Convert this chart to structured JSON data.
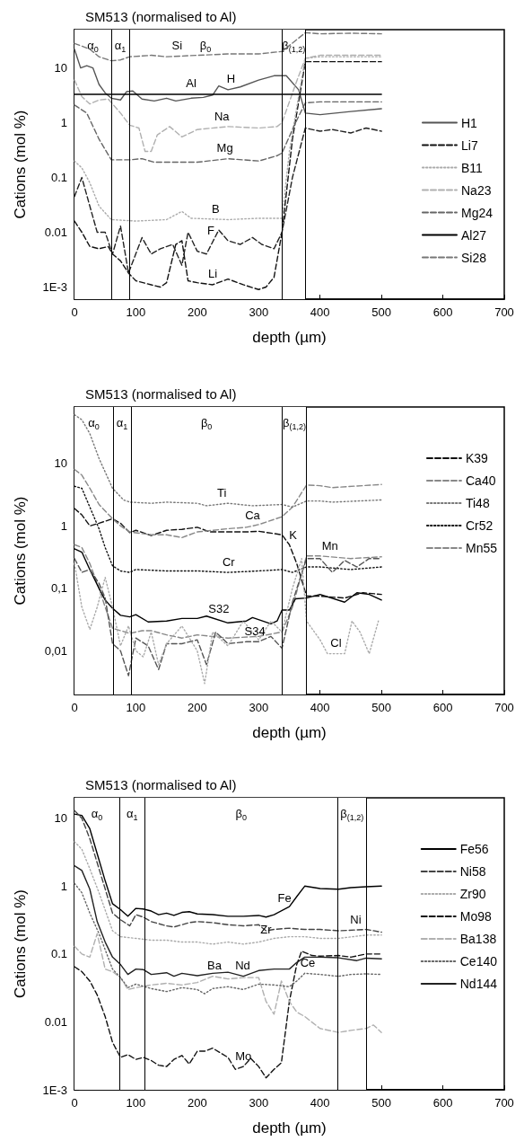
{
  "chart_data": [
    {
      "type": "line",
      "title": "SM513 (normalised to Al)",
      "xlabel": "depth (µm)",
      "ylabel": "Cations (mol %)",
      "log": "y",
      "grid": false,
      "legend": "right",
      "marker": "none",
      "xlim": [
        0,
        700
      ],
      "xticks": [
        0,
        100,
        200,
        300,
        400,
        500,
        600,
        700
      ],
      "ylim": [
        0.0006,
        50
      ],
      "yticks": [
        {
          "value": 0.001,
          "label": "1E-3"
        },
        0.01,
        0.1,
        1,
        10
      ],
      "ref_lines": [
        {
          "axis": "x",
          "value": 60
        },
        {
          "axis": "x",
          "value": 89
        },
        {
          "axis": "x",
          "value": 338
        },
        {
          "axis": "x",
          "value": 376
        }
      ],
      "bands": [
        {
          "axis": "x",
          "from": 0,
          "to": 60,
          "label": "α$_{0}$"
        },
        {
          "axis": "x",
          "from": 60,
          "to": 89,
          "label": "α$_{1}$"
        },
        {
          "axis": "x",
          "from": 89,
          "to": 338,
          "label": "β$_{0}$"
        },
        {
          "axis": "x",
          "from": 338,
          "to": 376,
          "label": "β$_{(1,2)}$"
        }
      ],
      "annotations": [
        {
          "text": "Si",
          "x": 167,
          "y": 16.3
        },
        {
          "text": "H",
          "x": 255,
          "y": 4.1
        },
        {
          "text": "Al",
          "x": 190,
          "y": 3.3
        },
        {
          "text": "Na",
          "x": 240,
          "y": 0.83
        },
        {
          "text": "Mg",
          "x": 245,
          "y": 0.22
        },
        {
          "text": "B",
          "x": 230,
          "y": 0.017
        },
        {
          "text": "F",
          "x": 222,
          "y": 0.0068
        },
        {
          "text": "Li",
          "x": 225,
          "y": 0.0011
        }
      ],
      "series": [
        {
          "name": "H1",
          "color": "#555555",
          "line_style": "solid",
          "x": [
            0,
            10,
            20,
            30,
            40,
            50,
            60,
            75,
            85,
            95,
            110,
            130,
            150,
            165,
            190,
            210,
            225,
            235,
            250,
            270,
            300,
            325,
            345,
            365,
            376,
            400,
            450,
            500
          ],
          "values": [
            22,
            10,
            11,
            10,
            5,
            3.5,
            2.8,
            2.6,
            3.7,
            3.8,
            2.7,
            2.5,
            2.8,
            2.5,
            2.8,
            2.9,
            3.2,
            4.7,
            4,
            4.5,
            6,
            7.2,
            7.2,
            4,
            1.5,
            1.4,
            1.6,
            1.8
          ]
        },
        {
          "name": "Li7",
          "color": "#111111",
          "line_style": "dashed",
          "x": [
            0,
            12,
            25,
            40,
            55,
            62,
            75,
            88,
            100,
            125,
            140,
            150,
            165,
            175,
            185,
            200,
            225,
            250,
            275,
            300,
            312,
            325,
            338,
            355,
            376,
            400,
            500
          ],
          "values": [
            0.016,
            0.01,
            0.0055,
            0.005,
            0.0055,
            0.004,
            0.003,
            0.0018,
            0.0013,
            0.0011,
            0.001,
            0.0012,
            0.006,
            0.007,
            0.0013,
            0.0012,
            0.0011,
            0.0014,
            0.0011,
            0.0009,
            0.001,
            0.0015,
            0.01,
            0.5,
            13,
            13,
            13
          ]
        },
        {
          "name": "B11",
          "color": "#aaaaaa",
          "line_style": "dotted",
          "x": [
            0,
            12,
            25,
            40,
            60,
            100,
            150,
            175,
            190,
            250,
            300,
            338,
            350,
            365,
            376,
            400,
            500
          ],
          "values": [
            0.2,
            0.15,
            0.08,
            0.03,
            0.017,
            0.016,
            0.017,
            0.024,
            0.018,
            0.017,
            0.018,
            0.018,
            0.3,
            3,
            15,
            16,
            16
          ]
        },
        {
          "name": "Na23",
          "color": "#b0b0b0",
          "line_style": "dashed",
          "x": [
            0,
            12,
            25,
            40,
            55,
            75,
            90,
            105,
            115,
            125,
            135,
            155,
            175,
            200,
            250,
            300,
            330,
            338,
            360,
            376,
            400,
            500
          ],
          "values": [
            6,
            3,
            2.2,
            2.6,
            2.7,
            1.5,
            0.9,
            0.8,
            0.3,
            0.3,
            0.6,
            0.85,
            0.55,
            0.75,
            0.85,
            0.8,
            0.85,
            1,
            5,
            15,
            17,
            17
          ]
        },
        {
          "name": "Mg24",
          "color": "#666666",
          "line_style": "dashed",
          "x": [
            0,
            20,
            40,
            60,
            90,
            110,
            130,
            200,
            250,
            300,
            330,
            338,
            360,
            376,
            400,
            500
          ],
          "values": [
            2.1,
            1.5,
            0.5,
            0.21,
            0.21,
            0.22,
            0.19,
            0.19,
            0.22,
            0.2,
            0.25,
            0.28,
            1,
            2.3,
            2.4,
            2.4
          ]
        },
        {
          "name": "Al27",
          "color": "#000000",
          "line_style": "solid",
          "x": [
            0,
            500
          ],
          "values": [
            3.3,
            3.3
          ]
        },
        {
          "name": "Si28",
          "color": "#777777",
          "line_style": "dashed",
          "x": [
            0,
            12,
            25,
            40,
            60,
            75,
            90,
            125,
            150,
            200,
            250,
            300,
            338,
            376,
            400,
            450,
            500
          ],
          "values": [
            28,
            25,
            22,
            16,
            13.5,
            14,
            16,
            17,
            16,
            17,
            18,
            18,
            20,
            44,
            42,
            43,
            42
          ]
        },
        {
          "color": "#222222",
          "line_style": "dashed",
          "x": [
            0,
            12,
            25,
            37,
            50,
            62,
            75,
            88,
            110,
            125,
            140,
            160,
            175,
            185,
            200,
            215,
            235,
            250,
            270,
            290,
            305,
            325,
            338,
            355,
            376,
            400,
            420,
            450,
            475,
            500
          ],
          "values": [
            0.045,
            0.1,
            0.03,
            0.01,
            0.01,
            0.004,
            0.013,
            0.0018,
            0.008,
            0.004,
            0.005,
            0.006,
            0.0025,
            0.01,
            0.0045,
            0.004,
            0.011,
            0.007,
            0.006,
            0.008,
            0.006,
            0.005,
            0.01,
            0.1,
            0.8,
            0.7,
            0.75,
            0.65,
            0.8,
            0.7
          ]
        }
      ]
    },
    {
      "type": "line",
      "title": "SM513 (normalised to Al)",
      "xlabel": "depth (µm)",
      "ylabel": "Cations (mol %)",
      "log": "y",
      "grid": false,
      "legend": "top right",
      "marker": "none",
      "xlim": [
        0,
        700
      ],
      "xticks": [
        0,
        100,
        200,
        300,
        400,
        500,
        600,
        700
      ],
      "ylim": [
        0.002,
        80
      ],
      "yticks": [
        {
          "value": 0.01,
          "label": "0,01"
        },
        {
          "value": 0.1,
          "label": "0,1"
        },
        1,
        10
      ],
      "ref_lines": [
        {
          "axis": "x",
          "value": 63
        },
        {
          "axis": "x",
          "value": 92
        },
        {
          "axis": "x",
          "value": 338
        },
        {
          "axis": "x",
          "value": 378
        }
      ],
      "bands": [
        {
          "axis": "x",
          "from": 0,
          "to": 63,
          "label": "α$_{0}$"
        },
        {
          "axis": "x",
          "from": 63,
          "to": 92,
          "label": "α$_{1}$"
        },
        {
          "axis": "x",
          "from": 92,
          "to": 338,
          "label": "β$_{0}$"
        },
        {
          "axis": "x",
          "from": 338,
          "to": 378,
          "label": "β$_{(1,2)}$"
        }
      ],
      "annotations": [
        {
          "text": "Ti",
          "x": 240,
          "y": 2.25
        },
        {
          "text": "Ca",
          "x": 290,
          "y": 1
        },
        {
          "text": "K",
          "x": 356,
          "y": 0.48
        },
        {
          "text": "Mn",
          "x": 416,
          "y": 0.32
        },
        {
          "text": "Cr",
          "x": 251,
          "y": 0.18
        },
        {
          "text": "S32",
          "x": 235,
          "y": 0.032
        },
        {
          "text": "S34",
          "x": 294,
          "y": 0.014
        },
        {
          "text": "Cl",
          "x": 426,
          "y": 0.009
        }
      ],
      "series": [
        {
          "name": "K39",
          "color": "#111111",
          "line_style": "dashed",
          "x": [
            0,
            12,
            25,
            40,
            62,
            75,
            90,
            100,
            125,
            150,
            175,
            200,
            220,
            250,
            280,
            300,
            338,
            350,
            362,
            378,
            400,
            440,
            470,
            500
          ],
          "values": [
            1.9,
            1.5,
            1,
            1.1,
            1.3,
            1.1,
            0.78,
            0.85,
            0.7,
            0.85,
            0.88,
            0.95,
            0.8,
            0.8,
            0.8,
            0.82,
            0.72,
            0.5,
            0.25,
            0.075,
            0.075,
            0.07,
            0.085,
            0.08
          ]
        },
        {
          "name": "Ca40",
          "color": "#888888",
          "line_style": "dashed",
          "x": [
            0,
            12,
            25,
            40,
            62,
            75,
            90,
            125,
            150,
            175,
            200,
            250,
            280,
            300,
            338,
            355,
            378,
            400,
            420,
            500
          ],
          "values": [
            8,
            6.5,
            4,
            2.2,
            1.3,
            1,
            0.8,
            0.72,
            0.72,
            0.65,
            0.8,
            0.9,
            0.95,
            1.05,
            1.4,
            2,
            4.5,
            4.4,
            4.1,
            4.6
          ]
        },
        {
          "name": "Ti48",
          "color": "#777777",
          "line_style": "dotted",
          "x": [
            0,
            12,
            25,
            40,
            62,
            80,
            90,
            125,
            150,
            200,
            215,
            250,
            290,
            338,
            355,
            378,
            400,
            420,
            500
          ],
          "values": [
            60,
            50,
            30,
            12,
            4,
            2.6,
            2.4,
            2.3,
            2.4,
            2.3,
            2.1,
            2.3,
            2.1,
            2.2,
            2,
            2.5,
            2.5,
            2.4,
            2.6
          ]
        },
        {
          "name": "Cr52",
          "color": "#111111",
          "line_style": "dotted",
          "x": [
            0,
            12,
            25,
            40,
            50,
            62,
            75,
            90,
            100,
            150,
            200,
            250,
            300,
            338,
            355,
            378,
            400,
            450,
            500
          ],
          "values": [
            4.3,
            4,
            2,
            0.9,
            0.45,
            0.23,
            0.19,
            0.18,
            0.2,
            0.19,
            0.19,
            0.18,
            0.19,
            0.2,
            0.18,
            0.22,
            0.22,
            0.2,
            0.22
          ]
        },
        {
          "name": "Mn55",
          "color": "#888888",
          "line_style": "dashed",
          "x": [
            0,
            12,
            25,
            40,
            50,
            62,
            90,
            110,
            125,
            150,
            175,
            200,
            250,
            300,
            338,
            355,
            378,
            400,
            450,
            500
          ],
          "values": [
            0.5,
            0.45,
            0.25,
            0.1,
            0.05,
            0.023,
            0.019,
            0.021,
            0.021,
            0.018,
            0.016,
            0.018,
            0.016,
            0.017,
            0.02,
            0.05,
            0.33,
            0.33,
            0.3,
            0.32
          ]
        },
        {
          "color": "#000000",
          "line_style": "solid",
          "x": [
            0,
            12,
            25,
            40,
            50,
            62,
            75,
            90,
            100,
            120,
            150,
            175,
            200,
            215,
            250,
            280,
            290,
            320,
            330,
            338,
            350,
            360,
            378,
            400,
            440,
            460,
            480,
            500
          ],
          "values": [
            0.43,
            0.38,
            0.2,
            0.1,
            0.065,
            0.048,
            0.037,
            0.035,
            0.038,
            0.029,
            0.03,
            0.033,
            0.033,
            0.036,
            0.028,
            0.03,
            0.034,
            0.027,
            0.03,
            0.045,
            0.045,
            0.068,
            0.07,
            0.08,
            0.06,
            0.085,
            0.08,
            0.065
          ]
        },
        {
          "color": "#555555",
          "line_style": "dashed",
          "x": [
            0,
            12,
            25,
            40,
            50,
            62,
            75,
            88,
            100,
            120,
            137,
            150,
            175,
            200,
            215,
            230,
            250,
            280,
            300,
            320,
            338,
            355,
            378,
            400,
            420,
            440,
            460,
            480,
            500
          ],
          "values": [
            0.3,
            0.18,
            0.2,
            0.12,
            0.07,
            0.013,
            0.01,
            0.004,
            0.016,
            0.012,
            0.005,
            0.013,
            0.013,
            0.015,
            0.006,
            0.02,
            0.013,
            0.014,
            0.014,
            0.017,
            0.011,
            0.06,
            0.3,
            0.3,
            0.18,
            0.28,
            0.22,
            0.3,
            0.3
          ]
        },
        {
          "color": "#aaaaaa",
          "line_style": "dotted",
          "x": [
            0,
            12,
            25,
            37,
            50,
            62,
            75,
            88,
            100,
            112,
            125,
            137,
            150,
            175,
            200,
            212,
            225,
            250,
            275,
            300,
            320,
            338,
            355,
            370,
            378,
            400,
            412,
            440,
            452,
            465,
            480,
            495
          ],
          "values": [
            0.25,
            0.05,
            0.022,
            0.05,
            0.15,
            0.05,
            0.012,
            0.025,
            0.01,
            0.008,
            0.02,
            0.006,
            0.013,
            0.025,
            0.01,
            0.003,
            0.02,
            0.012,
            0.03,
            0.015,
            0.03,
            0.02,
            0.1,
            0.3,
            0.03,
            0.015,
            0.009,
            0.009,
            0.03,
            0.02,
            0.009,
            0.03
          ]
        }
      ]
    },
    {
      "type": "line",
      "title": "SM513 (normalised to Al)",
      "xlabel": "depth (µm)",
      "ylabel": "Cations (mol %)",
      "log": "y",
      "grid": false,
      "legend": "top right",
      "marker": "none",
      "xlim": [
        0,
        700
      ],
      "xticks": [
        0,
        100,
        200,
        300,
        400,
        500,
        600,
        700
      ],
      "ylim": [
        0.001,
        20
      ],
      "yticks": [
        {
          "value": 0.001,
          "label": "1E-3"
        },
        0.01,
        0.1,
        1,
        10
      ],
      "ref_lines": [
        {
          "axis": "x",
          "value": 73
        },
        {
          "axis": "x",
          "value": 115
        },
        {
          "axis": "x",
          "value": 428
        },
        {
          "axis": "x",
          "value": 476
        }
      ],
      "bands": [
        {
          "axis": "x",
          "from": 0,
          "to": 73,
          "label": "α$_{0}$"
        },
        {
          "axis": "x",
          "from": 73,
          "to": 115,
          "label": "α$_{1}$"
        },
        {
          "axis": "x",
          "from": 115,
          "to": 428,
          "label": "β$_{0}$"
        },
        {
          "axis": "x",
          "from": 428,
          "to": 476,
          "label": "β$_{(1,2)}$"
        }
      ],
      "annotations": [
        {
          "text": "Fe",
          "x": 342,
          "y": 0.46
        },
        {
          "text": "Ni",
          "x": 458,
          "y": 0.22
        },
        {
          "text": "Zr",
          "x": 312,
          "y": 0.16
        },
        {
          "text": "Nd",
          "x": 274,
          "y": 0.047
        },
        {
          "text": "Ba",
          "x": 228,
          "y": 0.047
        },
        {
          "text": "Ce",
          "x": 380,
          "y": 0.052
        },
        {
          "text": "Mo",
          "x": 275,
          "y": 0.0022
        }
      ],
      "series": [
        {
          "name": "Fe56",
          "color": "#000000",
          "line_style": "solid",
          "x": [
            0,
            12,
            25,
            37,
            50,
            62,
            75,
            87,
            100,
            112,
            125,
            137,
            150,
            162,
            175,
            187,
            200,
            225,
            250,
            275,
            300,
            312,
            325,
            350,
            362,
            375,
            400,
            430,
            450,
            475,
            500
          ],
          "values": [
            11.5,
            11,
            7,
            3,
            1.2,
            0.55,
            0.45,
            0.36,
            0.47,
            0.46,
            0.43,
            0.38,
            0.4,
            0.37,
            0.41,
            0.42,
            0.39,
            0.38,
            0.36,
            0.36,
            0.37,
            0.35,
            0.38,
            0.5,
            0.7,
            1,
            0.92,
            0.9,
            0.95,
            0.98,
            1
          ]
        },
        {
          "name": "Ni58",
          "color": "#444444",
          "line_style": "dashed",
          "x": [
            0,
            12,
            25,
            40,
            62,
            75,
            90,
            100,
            112,
            125,
            150,
            162,
            187,
            200,
            225,
            250,
            275,
            300,
            312,
            325,
            350,
            375,
            400,
            430,
            475,
            500
          ],
          "values": [
            13,
            10,
            5,
            1.8,
            0.4,
            0.32,
            0.26,
            0.38,
            0.35,
            0.3,
            0.26,
            0.25,
            0.29,
            0.3,
            0.29,
            0.27,
            0.26,
            0.27,
            0.22,
            0.23,
            0.24,
            0.23,
            0.23,
            0.22,
            0.23,
            0.21
          ]
        },
        {
          "name": "Zr90",
          "color": "#aaaaaa",
          "line_style": "dotted",
          "x": [
            0,
            12,
            25,
            40,
            62,
            75,
            100,
            125,
            150,
            175,
            200,
            225,
            250,
            275,
            300,
            325,
            350,
            375,
            400,
            430,
            475,
            500
          ],
          "values": [
            4.5,
            3.5,
            1.8,
            0.8,
            0.22,
            0.18,
            0.17,
            0.16,
            0.16,
            0.15,
            0.15,
            0.14,
            0.15,
            0.14,
            0.15,
            0.17,
            0.18,
            0.18,
            0.17,
            0.17,
            0.19,
            0.19
          ]
        },
        {
          "name": "Mo98",
          "color": "#111111",
          "line_style": "dashed",
          "x": [
            0,
            12,
            25,
            37,
            50,
            62,
            75,
            87,
            100,
            112,
            125,
            137,
            150,
            162,
            175,
            187,
            200,
            212,
            225,
            250,
            262,
            275,
            287,
            300,
            312,
            325,
            337,
            350,
            362,
            370,
            387,
            400,
            430,
            450,
            475,
            500
          ],
          "values": [
            0.065,
            0.055,
            0.04,
            0.025,
            0.012,
            0.005,
            0.003,
            0.0033,
            0.0028,
            0.003,
            0.0027,
            0.0023,
            0.0022,
            0.0028,
            0.0032,
            0.0024,
            0.0037,
            0.0037,
            0.0041,
            0.003,
            0.002,
            0.0022,
            0.0029,
            0.0022,
            0.0015,
            0.002,
            0.0025,
            0.02,
            0.07,
            0.11,
            0.095,
            0.093,
            0.095,
            0.09,
            0.1,
            0.1
          ]
        },
        {
          "name": "Ba138",
          "color": "#b0b0b0",
          "line_style": "dashed",
          "x": [
            0,
            12,
            25,
            37,
            50,
            62,
            75,
            87,
            100,
            125,
            150,
            175,
            200,
            225,
            250,
            275,
            300,
            312,
            325,
            337,
            350,
            362,
            375,
            400,
            430,
            450,
            475,
            487,
            500
          ],
          "values": [
            0.13,
            0.1,
            0.09,
            0.2,
            0.06,
            0.055,
            0.045,
            0.03,
            0.032,
            0.035,
            0.037,
            0.035,
            0.038,
            0.047,
            0.043,
            0.045,
            0.045,
            0.02,
            0.013,
            0.04,
            0.02,
            0.014,
            0.012,
            0.008,
            0.007,
            0.0075,
            0.008,
            0.009,
            0.007
          ]
        },
        {
          "name": "Ce140",
          "color": "#666666",
          "line_style": "dotted",
          "x": [
            0,
            12,
            25,
            40,
            62,
            75,
            87,
            100,
            125,
            150,
            175,
            200,
            212,
            225,
            250,
            275,
            300,
            325,
            350,
            362,
            375,
            400,
            430,
            450,
            475,
            500
          ],
          "values": [
            1.1,
            0.8,
            0.4,
            0.2,
            0.06,
            0.045,
            0.032,
            0.036,
            0.031,
            0.028,
            0.032,
            0.03,
            0.026,
            0.031,
            0.033,
            0.03,
            0.036,
            0.035,
            0.033,
            0.04,
            0.052,
            0.05,
            0.047,
            0.05,
            0.051,
            0.05
          ]
        },
        {
          "name": "Nd144",
          "color": "#222222",
          "line_style": "solid",
          "x": [
            0,
            12,
            25,
            37,
            50,
            62,
            75,
            87,
            100,
            112,
            125,
            150,
            162,
            175,
            200,
            225,
            250,
            275,
            300,
            325,
            350,
            362,
            375,
            400,
            430,
            460,
            475,
            500
          ],
          "values": [
            2,
            1.7,
            0.9,
            0.3,
            0.15,
            0.09,
            0.07,
            0.05,
            0.06,
            0.059,
            0.05,
            0.053,
            0.047,
            0.052,
            0.048,
            0.052,
            0.054,
            0.047,
            0.057,
            0.06,
            0.06,
            0.075,
            0.09,
            0.09,
            0.088,
            0.08,
            0.087,
            0.085
          ]
        }
      ]
    }
  ]
}
